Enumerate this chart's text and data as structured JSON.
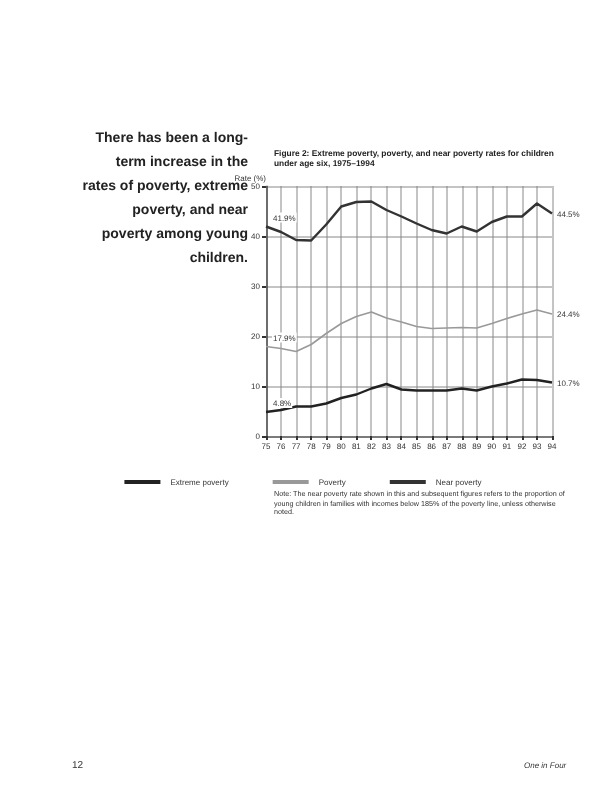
{
  "chart_data": {
    "type": "line",
    "title": "Figure 2: Extreme poverty, poverty, and near poverty rates for children under age six, 1975–1994",
    "ylabel": "Rate (%)",
    "categories": [
      "75",
      "76",
      "77",
      "78",
      "79",
      "80",
      "81",
      "82",
      "83",
      "84",
      "85",
      "86",
      "87",
      "88",
      "89",
      "90",
      "91",
      "92",
      "93",
      "94"
    ],
    "series": [
      {
        "name": "Extreme poverty",
        "color": "#222222",
        "values": [
          4.8,
          5.2,
          5.9,
          5.9,
          6.5,
          7.6,
          8.3,
          9.5,
          10.4,
          9.3,
          9.1,
          9.1,
          9.1,
          9.5,
          9.1,
          9.9,
          10.5,
          11.3,
          11.2,
          10.7
        ],
        "value_labels": [
          "4.8%",
          null,
          null,
          null,
          null,
          null,
          null,
          null,
          null,
          null,
          null,
          null,
          null,
          null,
          null,
          null,
          null,
          null,
          null,
          "10.7%"
        ]
      },
      {
        "name": "Poverty",
        "color": "#999999",
        "values": [
          17.9,
          17.5,
          16.9,
          18.3,
          20.5,
          22.5,
          23.9,
          24.8,
          23.6,
          22.8,
          21.9,
          21.5,
          21.6,
          21.7,
          21.6,
          22.5,
          23.5,
          24.4,
          25.2,
          24.4
        ],
        "value_labels": [
          "17.9%",
          null,
          null,
          null,
          null,
          null,
          null,
          null,
          null,
          null,
          null,
          null,
          null,
          null,
          null,
          null,
          null,
          null,
          null,
          "24.4%"
        ]
      },
      {
        "name": "Near poverty",
        "color": "#333333",
        "values": [
          41.9,
          40.8,
          39.2,
          39.1,
          42.3,
          45.9,
          46.8,
          46.9,
          45.2,
          43.9,
          42.5,
          41.2,
          40.5,
          41.9,
          40.9,
          42.8,
          43.9,
          43.9,
          46.5,
          44.5
        ],
        "value_labels": [
          "41.9%",
          null,
          null,
          null,
          null,
          null,
          null,
          null,
          null,
          null,
          null,
          null,
          null,
          null,
          null,
          null,
          null,
          null,
          null,
          "44.5%"
        ]
      }
    ],
    "ylim": [
      0,
      50
    ],
    "yticks": [
      0,
      10,
      20,
      30,
      40,
      50
    ],
    "grid": true,
    "legend": "bottom",
    "marker": "none",
    "line_style": "solid",
    "annotations": [
      "There has been a long-term increase in the rates of poverty, extreme poverty, and near poverty among young children.",
      "Note: The near poverty rate shown in this and subsequent figures refers to the proportion of young children in families with incomes below 185% of the poverty line, unless otherwise noted.",
      "12",
      "One in Four"
    ]
  }
}
